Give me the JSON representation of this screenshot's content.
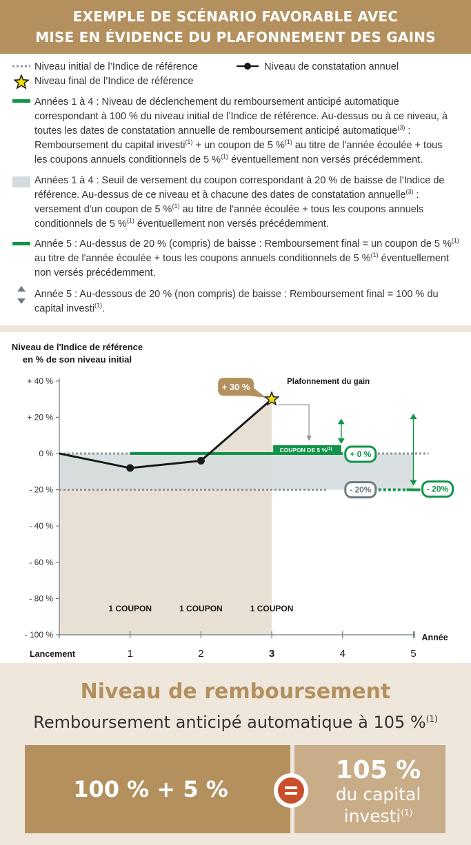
{
  "header": {
    "line1": "EXEMPLE DE SCÉNARIO FAVORABLE AVEC",
    "line2": "MISE EN ÉVIDENCE DU PLAFONNEMENT DES GAINS"
  },
  "legend": {
    "initial_level": "Niveau initial de l’Indice de référence",
    "final_level": "Niveau final de l’Indice de référence",
    "annual_level": "Niveau de constatation annuel",
    "block1": {
      "l1": "Années 1 à 4 : Niveau de déclenchement du remboursement anticipé automatique",
      "l2": "correspondant à 100 % du niveau initial de l’Indice de référence. Au-dessus ou à ce niveau, à",
      "l3a": "toutes les dates de constatation annuelle de remboursement anticipé automatique",
      "l3sup": "(3)",
      "l3b": " :",
      "l4a": "Remboursement du capital investi",
      "l4sup1": "(1)",
      "l4b": " + un coupon de 5 %",
      "l4sup2": "(1)",
      "l4c": " au titre de l'année écoulée + tous",
      "l5a": "les coupons annuels conditionnels de 5 %",
      "l5sup": "(1)",
      "l5b": " éventuellement non versés précédemment."
    },
    "block2": {
      "l1": "Années 1 à 4 : Seuil de versement du coupon correspondant à 20 % de baisse de l'Indice de",
      "l2a": "référence. Au-dessus de ce niveau et à chacune des dates de constatation annuelle",
      "l2sup": "(3)",
      "l2b": " :",
      "l3a": "versement d'un coupon de 5 %",
      "l3sup": "(1)",
      "l3b": " au titre de l'année écoulée + tous les coupons annuels",
      "l4a": "conditionnels de 5 %",
      "l4sup": "(1)",
      "l4b": " éventuellement non versés précédemment."
    },
    "block3": {
      "l1a": "Année 5 : Au-dessus de 20 % (compris) de baisse : Remboursement final = un coupon de 5 %",
      "l1sup": "(1)",
      "l2a": "au titre de l'année écoulée + tous les coupons annuels conditionnels de 5 %",
      "l2sup": "(1)",
      "l2b": " éventuellement",
      "l3": "non versés précédemment."
    },
    "block4": {
      "l1": "Année 5 : Au-dessous de 20 % (non compris) de baisse : Remboursement final = 100 % du",
      "l2a": "capital investi",
      "l2sup": "(1)",
      "l2b": "."
    }
  },
  "chart_data": {
    "type": "line",
    "ylabel_line1": "Niveau de l'Indice de référence",
    "ylabel_line2": "en % de son niveau initial",
    "xlabel": "Année",
    "ylim": [
      -100,
      40
    ],
    "y_ticks": [
      40,
      20,
      0,
      -20,
      -40,
      -60,
      -80,
      -100
    ],
    "y_tick_labels": [
      "+ 40 %",
      "+ 20 %",
      "0 %",
      "- 20 %",
      "- 40 %",
      "- 60 %",
      "- 80 %",
      "- 100 %"
    ],
    "x_ticks": [
      0,
      1,
      2,
      3,
      4,
      5
    ],
    "x_tick_labels": [
      "Lancement",
      "1",
      "2",
      "3",
      "4",
      "5"
    ],
    "series": [
      {
        "x": [
          0,
          1,
          2,
          3
        ],
        "y": [
          0,
          -8,
          -4,
          30
        ]
      }
    ],
    "final_marker": {
      "x": 3,
      "y": 30,
      "label": "+ 30 %"
    },
    "cap_label": "Plafonnement du gain",
    "coupon_bar_label": "COUPON DE 5 %",
    "coupon_bar_sup": "(1)",
    "coupon_labels": [
      "1 COUPON",
      "1 COUPON",
      "1 COUPON"
    ],
    "badge_0": "+ 0 %",
    "badge_m20_a": "- 20%",
    "badge_m20_b": "- 20%",
    "colors": {
      "gold": "#b3905e",
      "green": "#0f9448",
      "gray": "#8c959c",
      "band": "#d4dadd",
      "area": "#e8e0d5"
    }
  },
  "bottom": {
    "title": "Niveau de remboursement",
    "subtitle": "Remboursement anticipé automatique à 105 %",
    "subtitle_sup": "(1)",
    "left": "100 % + 5 %",
    "right_big": "105 %",
    "right_l1": "du capital",
    "right_l2": "investi",
    "right_sup": "(1)"
  }
}
